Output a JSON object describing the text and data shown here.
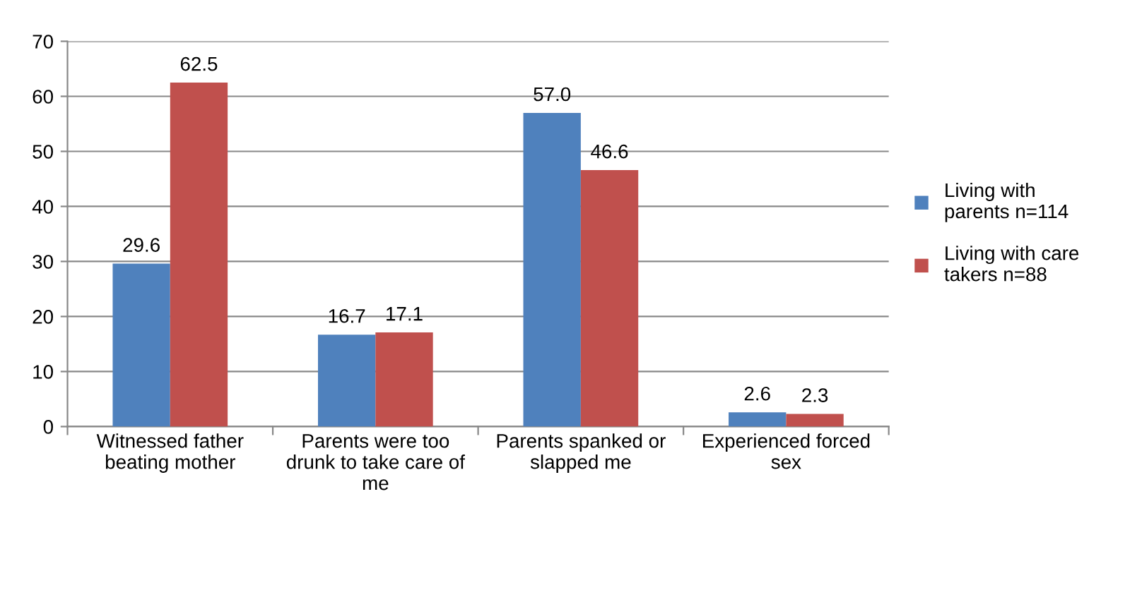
{
  "chart_data": {
    "type": "bar",
    "categories": [
      "Witnessed father\nbeating mother",
      "Parents were too\ndrunk to take care of\nme",
      "Parents spanked or\nslapped me",
      "Experienced forced\nsex"
    ],
    "series": [
      {
        "name": "Living with\nparents n=114",
        "color": "#4f81bd",
        "values": [
          29.6,
          16.7,
          57.0,
          2.6
        ],
        "value_labels": [
          "29.6",
          "16.7",
          "57.0",
          "2.6"
        ]
      },
      {
        "name": "Living with care\ntakers n=88",
        "color": "#c0504d",
        "values": [
          62.5,
          17.1,
          46.6,
          2.3
        ],
        "value_labels": [
          "62.5",
          "17.1",
          "46.6",
          "2.3"
        ]
      }
    ],
    "ylim": [
      0,
      70
    ],
    "yticks": [
      0,
      10,
      20,
      30,
      40,
      50,
      60,
      70
    ],
    "grid": "y",
    "legend": "right"
  }
}
